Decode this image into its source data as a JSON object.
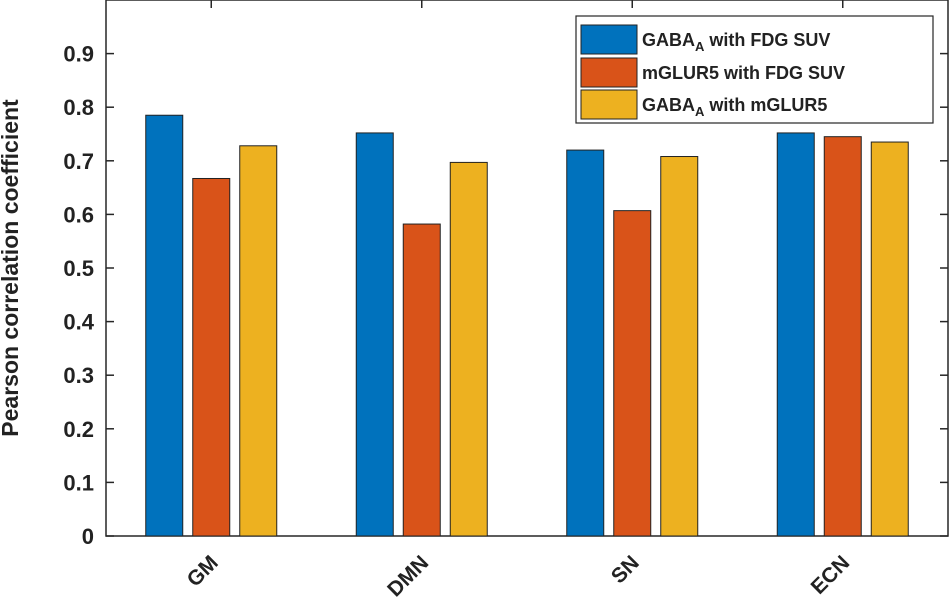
{
  "chart_data": {
    "type": "bar",
    "title": "",
    "xlabel": "",
    "ylabel": "Pearson correlation coefficient",
    "ylim": [
      0,
      1.0
    ],
    "yticks": [
      "0",
      "0.1",
      "0.2",
      "0.3",
      "0.4",
      "0.5",
      "0.6",
      "0.7",
      "0.8",
      "0.9"
    ],
    "grid": false,
    "categories": [
      "GM",
      "DMN",
      "SN",
      "ECN"
    ],
    "series": [
      {
        "name": "GABA",
        "name_sub": "A",
        "name_rest": " with FDG SUV",
        "color": "#0072BD",
        "values": [
          0.785,
          0.752,
          0.72,
          0.752
        ]
      },
      {
        "name": "mGLUR5 with FDG SUV",
        "name_sub": "",
        "name_rest": "",
        "color": "#D95319",
        "values": [
          0.667,
          0.582,
          0.607,
          0.745
        ]
      },
      {
        "name": "GABA",
        "name_sub": "A",
        "name_rest": " with mGLUR5",
        "color": "#EDB120",
        "values": [
          0.728,
          0.697,
          0.708,
          0.735
        ]
      }
    ],
    "legend_position": "top-right"
  }
}
